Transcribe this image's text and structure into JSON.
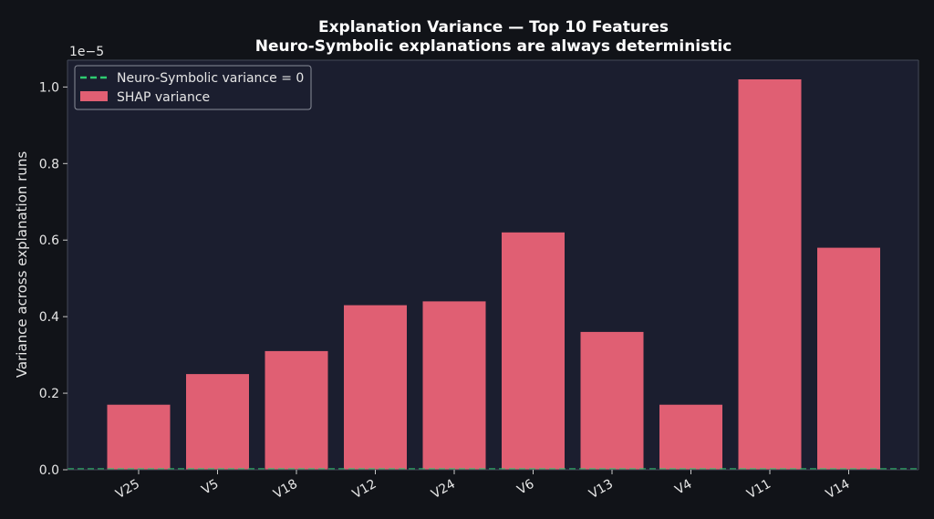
{
  "chart_data": {
    "type": "bar",
    "title": "Explanation Variance — Top 10 Features",
    "subtitle": "Neuro-Symbolic explanations are always deterministic",
    "ylabel": "Variance across explanation runs",
    "xlabel": "",
    "y_offset_text": "1e−5",
    "y_scale": 1e-05,
    "ylim": [
      0,
      1.07
    ],
    "yticks": [
      0.0,
      0.2,
      0.4,
      0.6,
      0.8,
      1.0
    ],
    "ytick_labels": [
      "0.0",
      "0.2",
      "0.4",
      "0.6",
      "0.8",
      "1.0"
    ],
    "categories": [
      "V25",
      "V5",
      "V18",
      "V12",
      "V24",
      "V6",
      "V13",
      "V4",
      "V11",
      "V14"
    ],
    "series": [
      {
        "name": "SHAP variance",
        "values": [
          0.17,
          0.25,
          0.31,
          0.43,
          0.44,
          0.62,
          0.36,
          0.17,
          1.02,
          0.58
        ],
        "color": "#e05f73"
      }
    ],
    "reference_line": {
      "name": "Neuro-Symbolic variance = 0",
      "value": 0,
      "style": "dashed",
      "color": "#2ecc71"
    },
    "legend": {
      "placement": "top-left",
      "entries": [
        "Neuro-Symbolic variance = 0",
        "SHAP variance"
      ]
    },
    "grid": false,
    "colors": {
      "figure_background": "#111318",
      "plot_background": "#1b1e2f",
      "spine": "#444857",
      "text": "#e6e6e6"
    }
  }
}
